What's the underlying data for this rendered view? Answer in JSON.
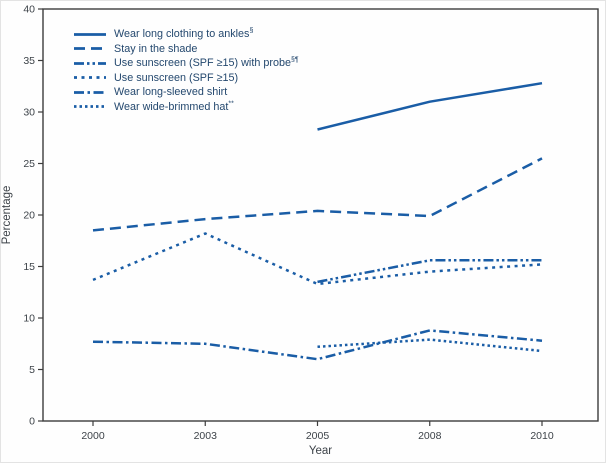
{
  "chart_data": {
    "type": "line",
    "title": "",
    "xlabel": "Year",
    "ylabel": "Percentage",
    "categories": [
      "2000",
      "2003",
      "2005",
      "2008",
      "2010"
    ],
    "ylim": [
      0,
      40
    ],
    "yticks": [
      0,
      5,
      10,
      15,
      20,
      25,
      30,
      35,
      40
    ],
    "grid": false,
    "legend_position": "top-left-inside",
    "line_color": "#1A5DA6",
    "axis_color": "#3c3c3c",
    "series": [
      {
        "name": "Wear long clothing to ankles",
        "sup": "§",
        "style": "solid",
        "values": [
          null,
          null,
          28.3,
          31.0,
          32.8
        ]
      },
      {
        "name": "Stay in the shade",
        "sup": "",
        "style": "long-dash",
        "values": [
          18.5,
          19.6,
          20.4,
          19.9,
          25.5
        ]
      },
      {
        "name": "Use sunscreen (SPF ≥15) with probe",
        "sup": "§¶",
        "style": "dash-dot-dot",
        "values": [
          null,
          null,
          13.5,
          15.6,
          15.6
        ]
      },
      {
        "name": "Use sunscreen (SPF ≥15)",
        "sup": "",
        "style": "short-dash",
        "values": [
          13.7,
          18.2,
          13.3,
          14.5,
          15.2
        ]
      },
      {
        "name": "Wear long-sleeved shirt",
        "sup": "",
        "style": "dash-dot",
        "values": [
          7.7,
          7.5,
          6.0,
          8.8,
          7.8
        ]
      },
      {
        "name": "Wear wide-brimmed hat",
        "sup": "**",
        "style": "dotted",
        "values": [
          null,
          null,
          7.2,
          7.9,
          6.8
        ]
      }
    ]
  }
}
